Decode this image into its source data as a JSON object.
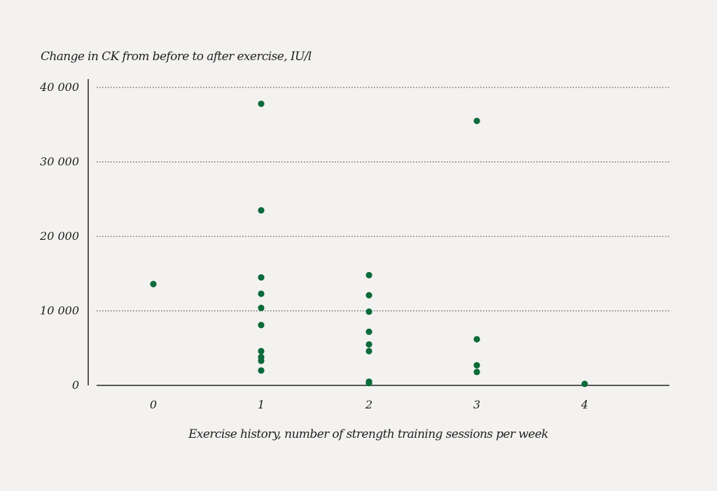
{
  "chart_data": {
    "type": "scatter",
    "title": "",
    "ylabel": "Change in CK from before to after exercise, IU/l",
    "xlabel": "Exercise history, number of strength training sessions per week",
    "x_ticks": [
      "0",
      "1",
      "2",
      "3",
      "4"
    ],
    "y_ticks": [
      "0",
      "10 000",
      "20 000",
      "30 000",
      "40 000"
    ],
    "xlim": [
      -0.5,
      4.8
    ],
    "ylim": [
      0,
      40000
    ],
    "grid": true,
    "series": [
      {
        "color": "#0b6b3a",
        "points": [
          {
            "x": 0,
            "y": 13600
          },
          {
            "x": 1,
            "y": 37800
          },
          {
            "x": 1,
            "y": 23500
          },
          {
            "x": 1,
            "y": 14500
          },
          {
            "x": 1,
            "y": 12300
          },
          {
            "x": 1,
            "y": 10400
          },
          {
            "x": 1,
            "y": 8100
          },
          {
            "x": 1,
            "y": 4600
          },
          {
            "x": 1,
            "y": 3800
          },
          {
            "x": 1,
            "y": 3300
          },
          {
            "x": 1,
            "y": 2000
          },
          {
            "x": 2,
            "y": 14800
          },
          {
            "x": 2,
            "y": 12100
          },
          {
            "x": 2,
            "y": 9900
          },
          {
            "x": 2,
            "y": 7200
          },
          {
            "x": 2,
            "y": 5500
          },
          {
            "x": 2,
            "y": 4600
          },
          {
            "x": 2,
            "y": 500
          },
          {
            "x": 2,
            "y": 300
          },
          {
            "x": 3,
            "y": 35500
          },
          {
            "x": 3,
            "y": 6200
          },
          {
            "x": 3,
            "y": 2700
          },
          {
            "x": 3,
            "y": 1800
          },
          {
            "x": 4,
            "y": 200
          }
        ]
      }
    ]
  }
}
